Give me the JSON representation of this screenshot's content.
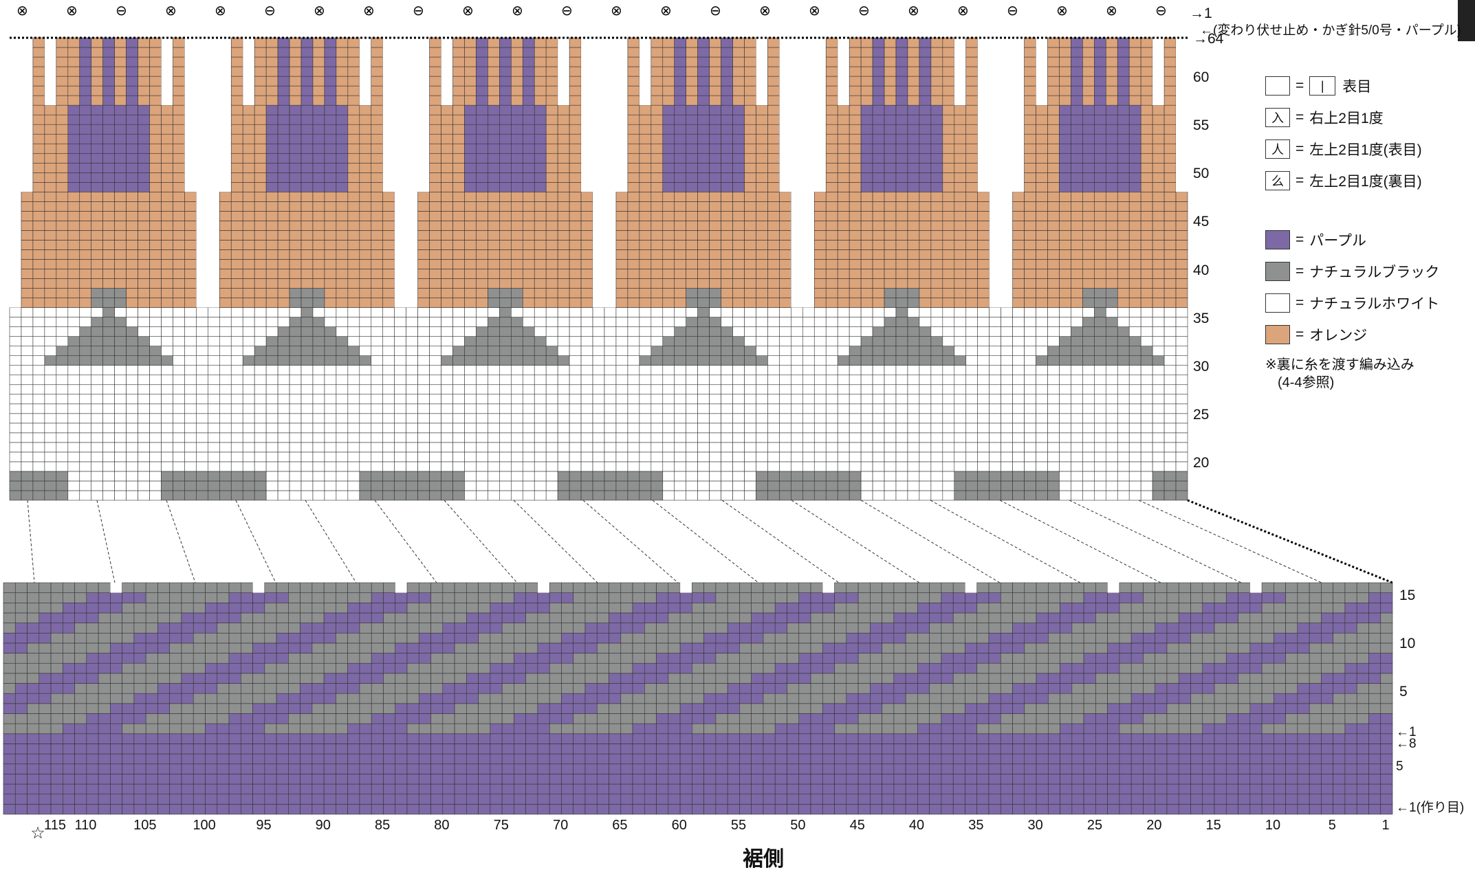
{
  "top_note": "←(変わり伏せ止め・かぎ針5/0号・パープル)",
  "upper_row_labels": [
    "64",
    "60",
    "55",
    "50",
    "45",
    "40",
    "35",
    "30",
    "25",
    "20"
  ],
  "upper_row_marker_1": "1",
  "lower_row_labels": [
    "15",
    "10",
    "5"
  ],
  "lower_row_markers": [
    "1",
    "8",
    "5",
    "1(作り目)"
  ],
  "column_labels": [
    "115",
    "110",
    "105",
    "100",
    "95",
    "90",
    "85",
    "80",
    "75",
    "70",
    "65",
    "60",
    "55",
    "50",
    "45",
    "40",
    "35",
    "30",
    "25",
    "20",
    "15",
    "10",
    "5",
    "1"
  ],
  "start_mark": "☆",
  "bottom_label": "裾側",
  "legend": {
    "symbols": [
      {
        "glyph": "|",
        "equals": "=",
        "text": "表目"
      },
      {
        "glyph": "入",
        "equals": "=",
        "text": "右上2目1度"
      },
      {
        "glyph": "人",
        "equals": "=",
        "text": "左上2目1度(表目)"
      },
      {
        "glyph": "么",
        "equals": "=",
        "text": "左上2目1度(裏目)"
      }
    ],
    "colors": [
      {
        "name": "パープル",
        "color": "#7d69a6"
      },
      {
        "name": "ナチュラルブラック",
        "color": "#8f9090"
      },
      {
        "name": "ナチュラルホワイト",
        "color": "#ffffff"
      },
      {
        "name": "オレンジ",
        "color": "#dca47b"
      }
    ],
    "note_line1": "※裏に糸を渡す編み込み",
    "note_line2": "(4-4参照)"
  },
  "colors": {
    "purple": "#7d69a6",
    "gray": "#8f9090",
    "white": "#ffffff",
    "orange": "#dca47b",
    "grid": "#333333"
  }
}
